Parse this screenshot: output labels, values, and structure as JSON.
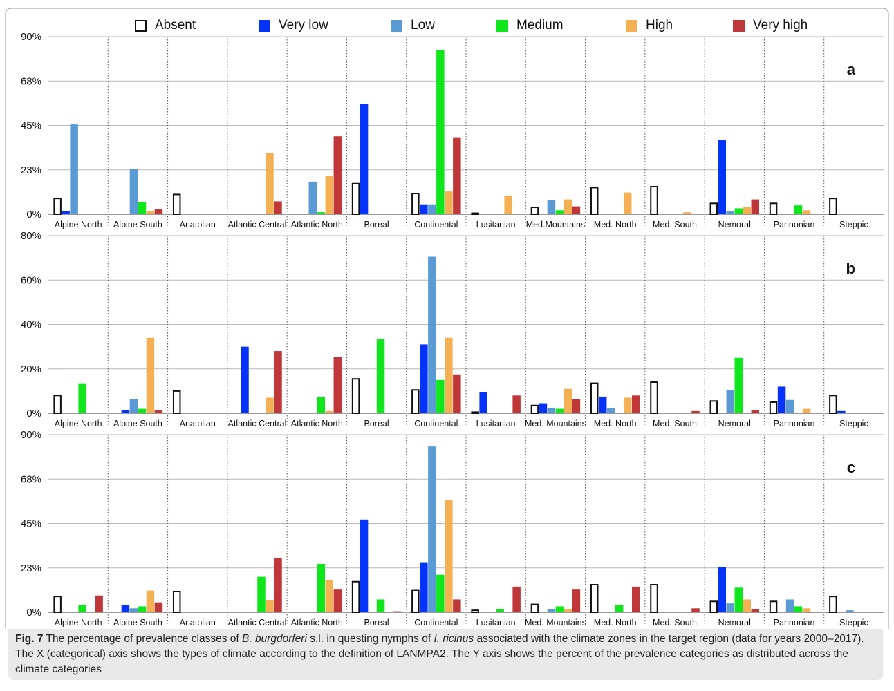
{
  "legend": [
    {
      "label": "Absent",
      "color": "#ffffff",
      "outline": true
    },
    {
      "label": "Very low",
      "color": "#0433ff"
    },
    {
      "label": "Low",
      "color": "#5b9bd5"
    },
    {
      "label": "Medium",
      "color": "#10e61c"
    },
    {
      "label": "High",
      "color": "#f4b053"
    },
    {
      "label": "Very high",
      "color": "#c0373a"
    }
  ],
  "caption": {
    "fig_label": "Fig. 7",
    "text_1": "The percentage of prevalence classes of",
    "species_1": "B. burgdorferi",
    "text_2": "s.l. in questing nymphs of",
    "species_2": "I. ricinus",
    "text_3": "associated with the climate zones in the target region (data for years 2000–2017). The X (categorical) axis shows the types of climate according to the definition of LANMPA2. The Y axis shows the percent of the prevalence categories as distributed across the climate categories"
  },
  "chart_data": [
    {
      "type": "bar",
      "panel_label": "a",
      "ytick_labels": [
        "0%",
        "23%",
        "45%",
        "68%",
        "90%"
      ],
      "ylim": [
        0,
        90
      ],
      "categories": [
        "Alpine North",
        "Alpine South",
        "Anatolian",
        "Atlantic Central",
        "Atlantic North",
        "Boreal",
        "Continental",
        "Lusitanian",
        "Med.Mountains",
        "Med. North",
        "Med. South",
        "Nemoral",
        "Pannonian",
        "Steppic"
      ],
      "series": [
        {
          "name": "Absent",
          "values": [
            8,
            0,
            10,
            0,
            0,
            15.5,
            10.5,
            0.5,
            3.5,
            13.5,
            14,
            5.5,
            5.5,
            8
          ]
        },
        {
          "name": "Very low",
          "values": [
            1.5,
            0,
            0,
            0,
            0,
            56,
            5,
            0,
            0,
            0,
            0,
            37.5,
            0,
            0
          ]
        },
        {
          "name": "Low",
          "values": [
            45.5,
            23,
            0,
            0,
            16.5,
            0,
            5,
            0,
            7,
            0,
            0,
            1.5,
            0,
            0
          ]
        },
        {
          "name": "Medium",
          "values": [
            0,
            6,
            0,
            0,
            1,
            0,
            83,
            0,
            2,
            0,
            0,
            3,
            4.5,
            0
          ]
        },
        {
          "name": "High",
          "values": [
            0,
            1.5,
            0,
            31,
            19.5,
            0,
            11.5,
            9.5,
            7.5,
            11,
            1,
            3.5,
            2,
            0
          ]
        },
        {
          "name": "Very high",
          "values": [
            0,
            2.5,
            0,
            6.5,
            39.5,
            0,
            39,
            0,
            4,
            0,
            0,
            7.5,
            0,
            0
          ]
        }
      ],
      "grid": true,
      "legend_position": "top"
    },
    {
      "type": "bar",
      "panel_label": "b",
      "ytick_labels": [
        "0%",
        "20%",
        "40%",
        "60%",
        "80%"
      ],
      "ylim": [
        0,
        80
      ],
      "categories": [
        "Alpine North",
        "Alpine South",
        "Anatolian",
        "Atlantic Central",
        "Atlantic North",
        "Boreal",
        "Continental",
        "Lusitanian",
        "Med. Mountains",
        "Med. North",
        "Med. South",
        "Nemoral",
        "Pannonian",
        "Steppic"
      ],
      "series": [
        {
          "name": "Absent",
          "values": [
            8,
            0,
            10,
            0,
            0,
            15.5,
            10.5,
            0.5,
            3.5,
            13.5,
            14,
            5.5,
            5,
            8
          ]
        },
        {
          "name": "Very low",
          "values": [
            0,
            1.5,
            0,
            30,
            0,
            0,
            31,
            9.5,
            4.5,
            7.5,
            0,
            0,
            12,
            1
          ]
        },
        {
          "name": "Low",
          "values": [
            0,
            6.5,
            0,
            0,
            0,
            0,
            70.5,
            0,
            2.5,
            2.5,
            0,
            10.5,
            6,
            0
          ]
        },
        {
          "name": "Medium",
          "values": [
            13.5,
            2,
            0,
            0,
            7.5,
            33.5,
            15,
            0,
            2,
            0,
            0,
            25,
            0,
            0
          ]
        },
        {
          "name": "High",
          "values": [
            0,
            34,
            0,
            7,
            1,
            0,
            34,
            0,
            11,
            7,
            0,
            0,
            2,
            0
          ]
        },
        {
          "name": "Very high",
          "values": [
            0,
            1.5,
            0,
            28,
            25.5,
            0,
            17.5,
            8,
            6.5,
            8,
            1,
            1.5,
            0,
            0
          ]
        }
      ],
      "grid": true
    },
    {
      "type": "bar",
      "panel_label": "c",
      "ytick_labels": [
        "0%",
        "23%",
        "45%",
        "68%",
        "90%"
      ],
      "ylim": [
        0,
        90
      ],
      "categories": [
        "Alpine North",
        "Alpine South",
        "Anatolian",
        "Atlantic Central",
        "Atlantic North",
        "Boreal",
        "Continental",
        "Lusitanian",
        "Med. Mountains",
        "Med. North",
        "Med. South",
        "Nemoral",
        "Pannonian",
        "Steppic"
      ],
      "series": [
        {
          "name": "Absent",
          "values": [
            8,
            0,
            10.5,
            0,
            0,
            15.5,
            11,
            1,
            4,
            14,
            14,
            5.5,
            5.5,
            8
          ]
        },
        {
          "name": "Very low",
          "values": [
            0,
            3.5,
            0,
            0,
            0,
            47,
            25,
            0,
            0,
            0,
            0,
            23,
            0,
            0
          ]
        },
        {
          "name": "Low",
          "values": [
            0,
            2,
            0,
            0,
            0,
            0,
            84,
            0,
            1.5,
            0,
            0,
            4.5,
            6.5,
            1
          ]
        },
        {
          "name": "Medium",
          "values": [
            3.5,
            3,
            0,
            18,
            24.5,
            6.5,
            19,
            1.5,
            3,
            3.5,
            0,
            12.5,
            3,
            0
          ]
        },
        {
          "name": "High",
          "values": [
            0,
            11,
            0,
            6,
            16.5,
            0,
            57,
            0,
            1.5,
            0,
            0,
            6.5,
            2,
            0
          ]
        },
        {
          "name": "Very high",
          "values": [
            8.5,
            5,
            0,
            27.5,
            11.5,
            0.5,
            6.5,
            13,
            11.5,
            13,
            2,
            1.5,
            0,
            0
          ]
        }
      ],
      "grid": true
    }
  ]
}
